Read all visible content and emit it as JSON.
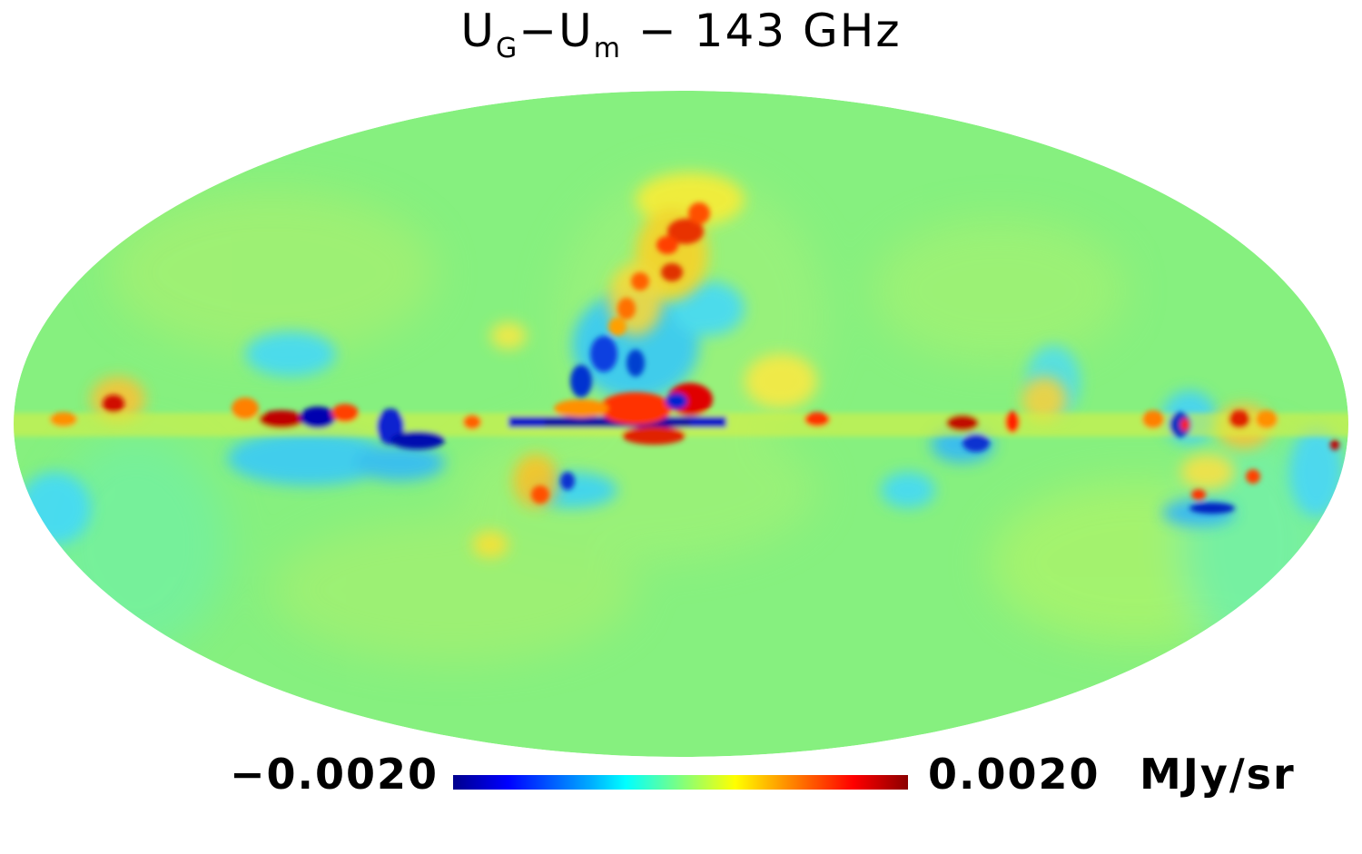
{
  "title": {
    "main1": "U",
    "sub1": "G",
    "dash": "−",
    "main2": "U",
    "sub2": "m",
    "rest": " − 143 GHz"
  },
  "colorbar": {
    "min_label": "−0.0020",
    "max_label": "0.0020",
    "unit": "MJy/sr",
    "min_value": -0.002,
    "max_value": 0.002,
    "colormap": [
      "#00008c",
      "#0000ff",
      "#00aaff",
      "#00ffff",
      "#7fff7f",
      "#ffff00",
      "#ff7f00",
      "#ff0000",
      "#8b0000"
    ]
  },
  "map": {
    "projection": "mollweide",
    "background_color": "#7ff28a"
  }
}
